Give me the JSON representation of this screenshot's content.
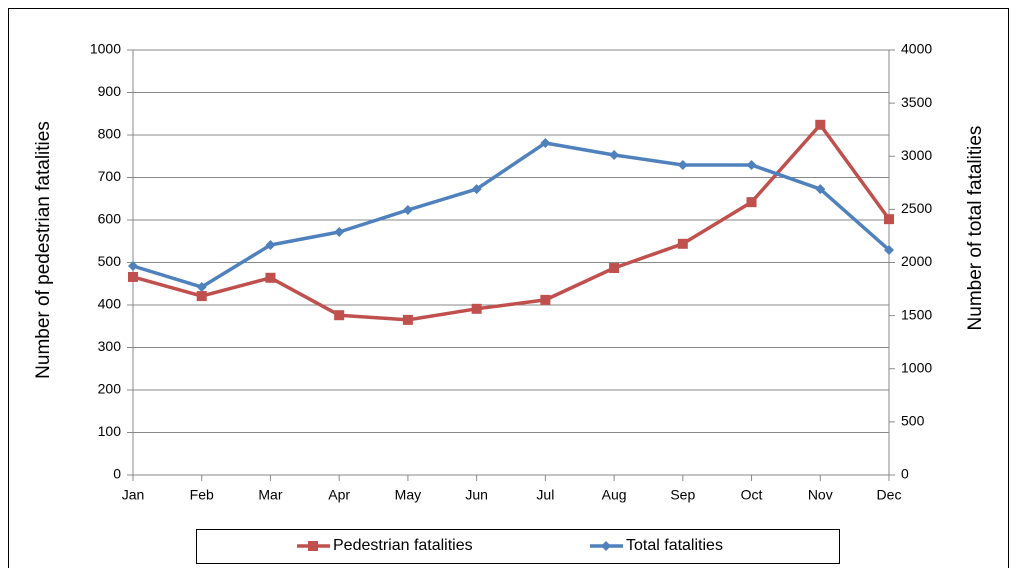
{
  "chart_data": {
    "type": "line",
    "categories": [
      "Jan",
      "Feb",
      "Mar",
      "Apr",
      "May",
      "Jun",
      "Jul",
      "Aug",
      "Sep",
      "Oct",
      "Nov",
      "Dec"
    ],
    "ylabel": "Number of pedestrian fatalities",
    "y2label": "Number of total fatalities",
    "ylim": [
      0,
      1000
    ],
    "yticks": [
      0,
      100,
      200,
      300,
      400,
      500,
      600,
      700,
      800,
      900,
      1000
    ],
    "y2lim": [
      0,
      4000
    ],
    "y2ticks": [
      0,
      500,
      1000,
      1500,
      2000,
      2500,
      3000,
      3500,
      4000
    ],
    "grid": true,
    "legend": "bottom",
    "series": [
      {
        "name": "Pedestrian fatalities",
        "color": "#c0504d",
        "marker": "square",
        "values": [
          466,
          421,
          464,
          376,
          365,
          391,
          412,
          487,
          544,
          642,
          824,
          602
        ]
      },
      {
        "name": "Total fatalities",
        "color": "#4f81bd",
        "marker": "diamond",
        "axis": "y2",
        "values": [
          1967,
          1769,
          2165,
          2287,
          2494,
          2691,
          3125,
          3012,
          2918,
          2918,
          2691,
          2118
        ]
      }
    ]
  }
}
